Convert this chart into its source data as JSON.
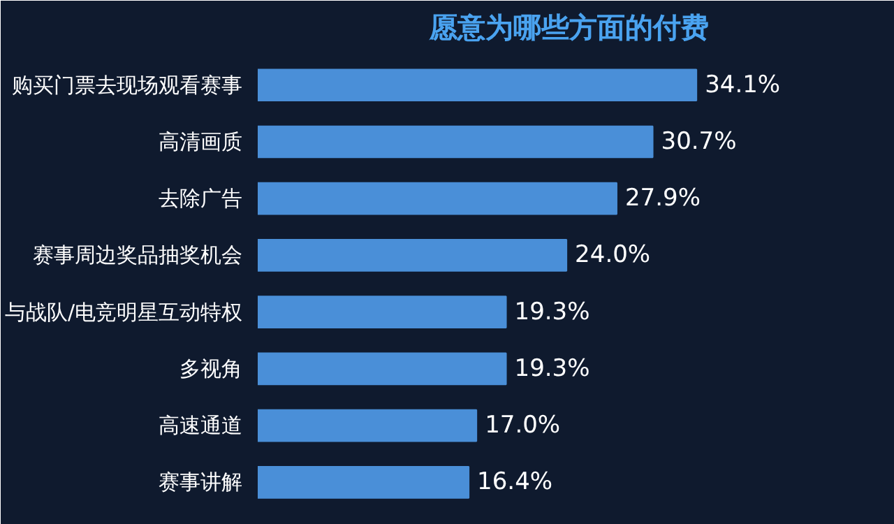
{
  "chart_data": {
    "type": "bar",
    "orientation": "horizontal",
    "title": "愿意为哪些方面的付费",
    "categories": [
      "购买门票去现场观看赛事",
      "高清画质",
      "去除广告",
      "赛事周边奖品抽奖机会",
      "与战队/电竞明星互动特权",
      "多视角",
      "高速通道",
      "赛事讲解"
    ],
    "values": [
      34.1,
      30.7,
      27.9,
      24.0,
      19.3,
      19.3,
      17.0,
      16.4
    ],
    "value_labels": [
      "34.1%",
      "30.7%",
      "27.9%",
      "24.0%",
      "19.3%",
      "19.3%",
      "17.0%",
      "16.4%"
    ],
    "color": "#4a8fd8",
    "tick_labels": "y",
    "grid": false
  }
}
